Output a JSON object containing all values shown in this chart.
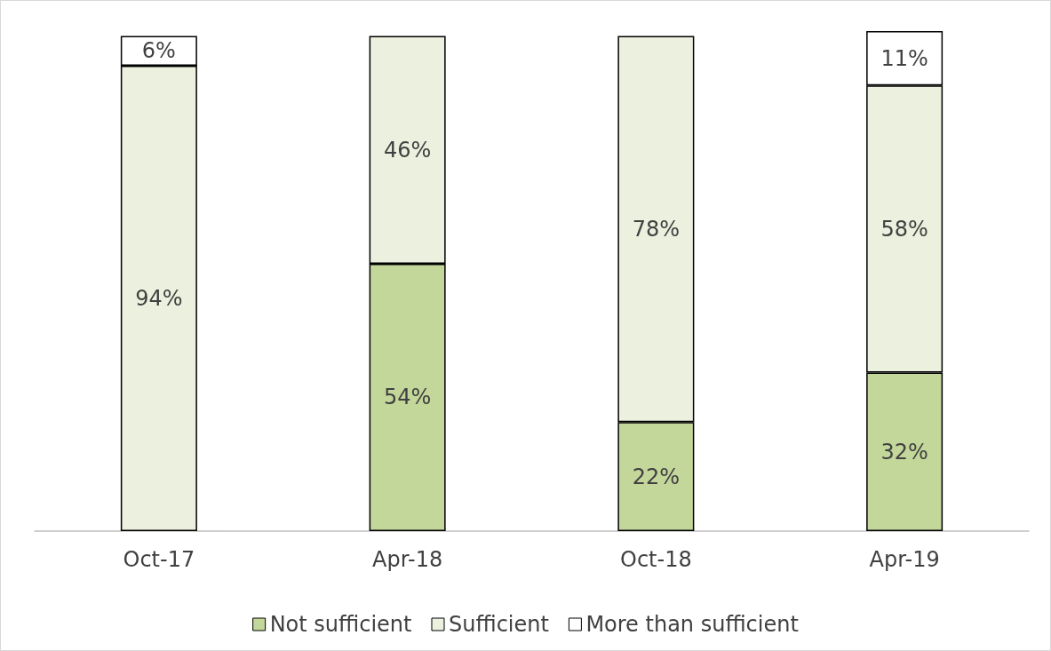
{
  "chart_data": {
    "type": "bar",
    "stacked": true,
    "categories": [
      "Oct-17",
      "Apr-18",
      "Oct-18",
      "Apr-19"
    ],
    "series": [
      {
        "name": "Not sufficient",
        "color": "#c4d79b",
        "values": [
          null,
          54,
          22,
          32
        ],
        "value_labels": [
          null,
          "54%",
          "22%",
          "32%"
        ]
      },
      {
        "name": "Sufficient",
        "color": "#ebf1de",
        "values": [
          94,
          46,
          78,
          58
        ],
        "value_labels": [
          "94%",
          "46%",
          "78%",
          "58%"
        ]
      },
      {
        "name": "More than sufficient",
        "color": "#ffffff",
        "values": [
          6,
          null,
          null,
          11
        ],
        "value_labels": [
          "6%",
          null,
          null,
          "11%"
        ]
      }
    ],
    "ylim": [
      0,
      101
    ],
    "legend": "bottom"
  }
}
